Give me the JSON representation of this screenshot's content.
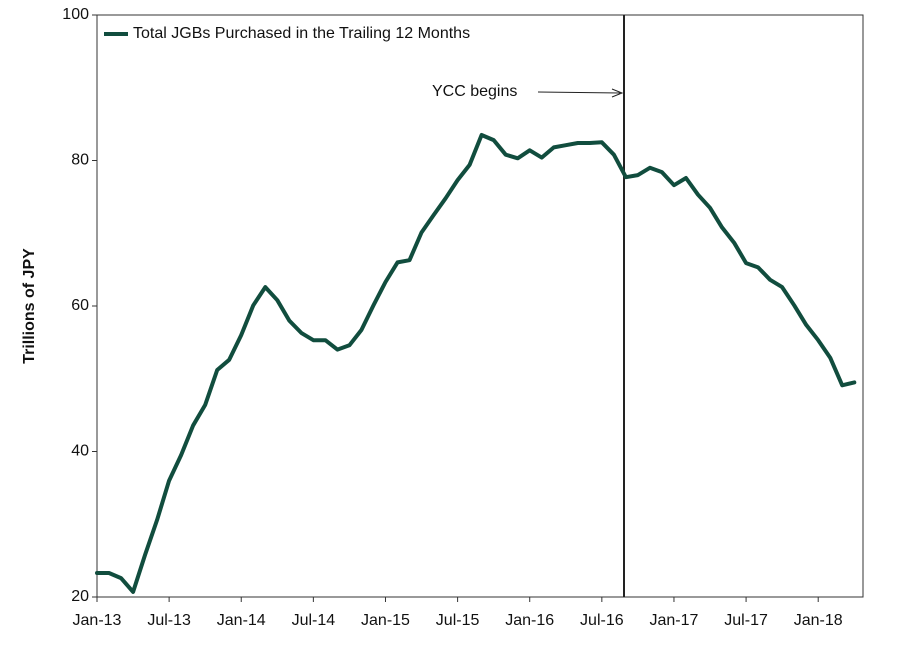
{
  "chart_data": {
    "type": "line",
    "y_label": "Trillions of JPY",
    "annotation": "YCC begins",
    "categories": [
      "Jan-13",
      null,
      null,
      null,
      null,
      null,
      "Jul-13",
      null,
      null,
      null,
      null,
      null,
      "Jan-14",
      null,
      null,
      null,
      null,
      null,
      "Jul-14",
      null,
      null,
      null,
      null,
      null,
      "Jan-15",
      null,
      null,
      null,
      null,
      null,
      "Jul-15",
      null,
      null,
      null,
      null,
      null,
      "Jan-16",
      null,
      null,
      null,
      null,
      null,
      "Jul-16",
      null,
      null,
      null,
      null,
      null,
      "Jan-17",
      null,
      null,
      null,
      null,
      null,
      "Jul-17",
      null,
      null,
      null,
      null,
      null,
      "Jan-18",
      null,
      null,
      null
    ],
    "series": [
      {
        "name": "Total JGBs Purchased in the Trailing 12 Months",
        "color": "#114d3e",
        "values": [
          23.3,
          23.3,
          22.6,
          20.7,
          25.8,
          30.6,
          36,
          39.5,
          43.6,
          46.4,
          51.2,
          52.6,
          56,
          60.1,
          62.6,
          60.8,
          58,
          56.3,
          55.3,
          55.3,
          54,
          54.6,
          56.7,
          60.1,
          63.3,
          66,
          66.3,
          70.1,
          72.5,
          74.8,
          77.3,
          79.4,
          83.5,
          82.8,
          80.8,
          80.3,
          81.4,
          80.4,
          81.8,
          82.1,
          82.4,
          82.4,
          82.5,
          80.8,
          77.7,
          78,
          79,
          78.4,
          76.6,
          77.6,
          75.3,
          73.5,
          70.8,
          68.7,
          65.9,
          65.3,
          63.6,
          62.6,
          60.1,
          57.4,
          55.3,
          52.9,
          49.1,
          49.5
        ]
      }
    ],
    "ylim": [
      20,
      100
    ],
    "yticks": [
      20,
      40,
      60,
      80,
      100
    ],
    "grid": false,
    "legend": "top-left"
  }
}
